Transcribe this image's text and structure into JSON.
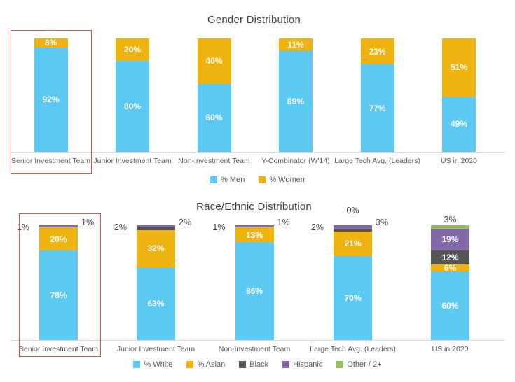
{
  "colors": {
    "blue": "#5BC9F2",
    "gold": "#EFB310",
    "dark_gray": "#555555",
    "purple": "#8269A5",
    "green": "#98BD5E",
    "highlight_red": "#D9534F",
    "axis_line": "#D9D9D9",
    "title_text": "#404040",
    "category_text": "#595959",
    "outside_label_text": "#404040",
    "inside_label_text": "#FFFFFF"
  },
  "chart_data": [
    {
      "type": "bar",
      "subtype": "stacked-100-percent-column",
      "title": "Gender Distribution",
      "categories": [
        "Senior Investment Team",
        "Junior Investment Team",
        "Non-Investment Team",
        "Y-Combinator (W'14)",
        "Large Tech Avg. (Leaders)",
        "US in 2020"
      ],
      "series": [
        {
          "name": "% Men",
          "color": "#5BC9F2",
          "values": [
            92,
            80,
            60,
            89,
            77,
            49
          ]
        },
        {
          "name": "% Women",
          "color": "#EFB310",
          "values": [
            8,
            20,
            40,
            11,
            23,
            51
          ]
        }
      ],
      "value_suffix": "%",
      "ylim": [
        0,
        100
      ],
      "grid": false,
      "legend_position": "bottom",
      "legend": [
        "% Men",
        "% Women"
      ],
      "highlighted_category": "Senior Investment Team",
      "outside_labels": []
    },
    {
      "type": "bar",
      "subtype": "stacked-100-percent-column",
      "title": "Race/Ethnic Distribution",
      "categories": [
        "Senior Investment Team",
        "Junior Investment Team",
        "Non-Investment Team",
        "Large Tech Avg. (Leaders)",
        "US in 2020"
      ],
      "series": [
        {
          "name": "% White",
          "color": "#5BC9F2",
          "values": [
            78,
            63,
            86,
            70,
            60
          ]
        },
        {
          "name": "% Asian",
          "color": "#EFB310",
          "values": [
            20,
            32,
            13,
            21,
            6
          ]
        },
        {
          "name": "Black",
          "color": "#555555",
          "values": [
            1,
            2,
            1,
            2,
            12
          ]
        },
        {
          "name": "Hispanic",
          "color": "#8269A5",
          "values": [
            1,
            2,
            1,
            3,
            19
          ]
        },
        {
          "name": "Other / 2+",
          "color": "#98BD5E",
          "values": [
            0,
            0,
            0,
            0,
            3
          ]
        }
      ],
      "value_suffix": "%",
      "ylim": [
        0,
        100
      ],
      "grid": false,
      "legend_position": "bottom",
      "legend": [
        "% White",
        "% Asian",
        "Black",
        "Hispanic",
        "Other / 2+"
      ],
      "highlighted_category": "Senior Investment Team",
      "outside_labels": [
        {
          "bar": 0,
          "series": "Black",
          "pos": "left",
          "text": "1%"
        },
        {
          "bar": 0,
          "series": "Hispanic",
          "pos": "right",
          "text": "1%"
        },
        {
          "bar": 1,
          "series": "Black",
          "pos": "left",
          "text": "2%"
        },
        {
          "bar": 1,
          "series": "Hispanic",
          "pos": "right",
          "text": "2%"
        },
        {
          "bar": 2,
          "series": "Black",
          "pos": "left",
          "text": "1%"
        },
        {
          "bar": 2,
          "series": "Hispanic",
          "pos": "right",
          "text": "1%"
        },
        {
          "bar": 3,
          "series": "Black",
          "pos": "left",
          "text": "2%"
        },
        {
          "bar": 3,
          "series": "Hispanic",
          "pos": "right",
          "text": "3%"
        },
        {
          "bar": 3,
          "series": "Other / 2+",
          "pos": "above",
          "text": "0%",
          "dy": -27
        },
        {
          "bar": 4,
          "series": "Other / 2+",
          "pos": "above",
          "text": "3%",
          "dy": -14
        }
      ]
    }
  ]
}
